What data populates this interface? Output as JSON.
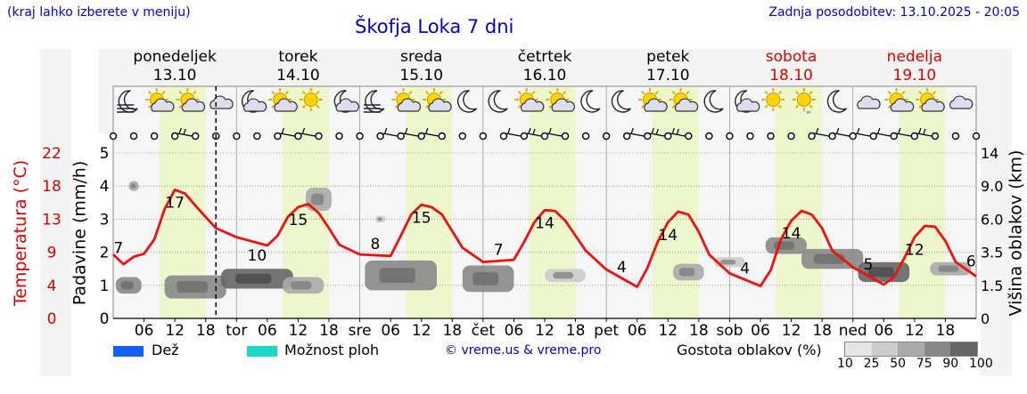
{
  "header": {
    "hint": "(kraj lahko izberete v meniju)",
    "title": "Škofja Loka 7 dni",
    "updated": "Zadnja posodobitev: 13.10.2025 - 20:05"
  },
  "axes": {
    "temp_label": "Temperatura (°C)",
    "rain_label": "Padavine (mm/h)",
    "cloud_label": "Višina oblakov (km)"
  },
  "colors": {
    "temp_line": "#ee1111",
    "rain": "#1060ff",
    "showers": "#18d8c8",
    "day_band": "#eef6cc",
    "title": "#0000dd",
    "weekend": "#e00000"
  },
  "chart_data": {
    "type": "line",
    "title": "Škofja Loka 7 dni",
    "days": [
      {
        "name": "ponedeljek",
        "date": "13.10",
        "weekend": false
      },
      {
        "name": "torek",
        "date": "14.10",
        "weekend": false
      },
      {
        "name": "sreda",
        "date": "15.10",
        "weekend": false
      },
      {
        "name": "četrtek",
        "date": "16.10",
        "weekend": false
      },
      {
        "name": "petek",
        "date": "17.10",
        "weekend": false
      },
      {
        "name": "sobota",
        "date": "18.10",
        "weekend": true
      },
      {
        "name": "nedelja",
        "date": "19.10",
        "weekend": true
      }
    ],
    "x_ticks": [
      "06",
      "12",
      "18",
      "tor",
      "06",
      "12",
      "18",
      "sre",
      "06",
      "12",
      "18",
      "čet",
      "06",
      "12",
      "18",
      "pet",
      "06",
      "12",
      "18",
      "sob",
      "06",
      "12",
      "18",
      "ned",
      "06",
      "12",
      "18"
    ],
    "x_tick_hours": [
      6,
      12,
      18,
      24,
      30,
      36,
      42,
      48,
      54,
      60,
      66,
      72,
      78,
      84,
      90,
      96,
      102,
      108,
      114,
      120,
      126,
      132,
      138,
      144,
      150,
      156,
      162
    ],
    "x_range_hours": [
      0,
      168
    ],
    "now_hour": 20,
    "temp": {
      "hours": [
        0,
        2,
        4,
        6,
        8,
        10,
        12,
        14,
        16,
        18,
        20,
        24,
        30,
        32,
        34,
        36,
        38,
        40,
        42,
        44,
        48,
        54,
        56,
        58,
        60,
        62,
        64,
        66,
        68,
        72,
        78,
        80,
        82,
        84,
        86,
        88,
        90,
        92,
        96,
        102,
        104,
        106,
        108,
        110,
        112,
        114,
        116,
        120,
        126,
        128,
        130,
        132,
        134,
        136,
        138,
        140,
        144,
        150,
        152,
        154,
        156,
        158,
        160,
        162,
        164,
        168
      ],
      "values": [
        8.5,
        7.2,
        8.2,
        8.6,
        10.5,
        14.5,
        17.1,
        16.6,
        15.0,
        13.5,
        12.0,
        10.8,
        9.7,
        11.0,
        13.5,
        14.8,
        15.2,
        14.0,
        12.0,
        9.8,
        8.5,
        8.3,
        11.0,
        13.8,
        15.1,
        14.8,
        13.8,
        11.6,
        9.4,
        7.5,
        7.8,
        10.2,
        12.8,
        14.4,
        14.3,
        13.0,
        11.0,
        9.0,
        6.5,
        4.2,
        6.7,
        10.2,
        12.8,
        14.2,
        13.8,
        11.5,
        8.5,
        6.0,
        4.3,
        6.4,
        10.5,
        13.0,
        14.3,
        13.8,
        12.0,
        9.0,
        6.8,
        4.5,
        5.5,
        8.0,
        10.8,
        12.3,
        12.2,
        10.3,
        7.5,
        5.6
      ]
    },
    "temp_labels": [
      {
        "hour": 1,
        "value": "7"
      },
      {
        "hour": 12,
        "value": "17"
      },
      {
        "hour": 28,
        "value": "10"
      },
      {
        "hour": 36,
        "value": "15"
      },
      {
        "hour": 51,
        "value": "8"
      },
      {
        "hour": 60,
        "value": "15"
      },
      {
        "hour": 75,
        "value": "7"
      },
      {
        "hour": 84,
        "value": "14"
      },
      {
        "hour": 99,
        "value": "4"
      },
      {
        "hour": 108,
        "value": "14"
      },
      {
        "hour": 123,
        "value": "4"
      },
      {
        "hour": 132,
        "value": "14"
      },
      {
        "hour": 147,
        "value": "5"
      },
      {
        "hour": 156,
        "value": "12"
      },
      {
        "hour": 167,
        "value": "6"
      }
    ],
    "temp_ticks": [
      "0",
      "4",
      "9",
      "13",
      "18",
      "22"
    ],
    "temp_tick_values": [
      0,
      4.4,
      8.8,
      13.2,
      17.6,
      22
    ],
    "temp_range": [
      0,
      22
    ],
    "rain_ticks": [
      "0",
      "1",
      "2",
      "3",
      "4",
      "5"
    ],
    "rain_range": [
      0,
      5
    ],
    "cloud_ticks": [
      "0",
      "1.5",
      "3.5",
      "6.0",
      "9.0",
      "14"
    ],
    "cloud_tick_positions": [
      0,
      1,
      2,
      3,
      4,
      5
    ],
    "cloud_blobs": [
      {
        "hour": 4,
        "level": 4.0,
        "w": 2,
        "h": 0.3,
        "density": 50
      },
      {
        "hour": 3,
        "level": 1.0,
        "w": 5,
        "h": 0.5,
        "density": 75
      },
      {
        "hour": 16,
        "level": 0.95,
        "w": 12,
        "h": 0.7,
        "density": 75
      },
      {
        "hour": 28,
        "level": 1.2,
        "w": 14,
        "h": 0.6,
        "density": 90
      },
      {
        "hour": 40,
        "level": 3.6,
        "w": 5,
        "h": 0.7,
        "density": 50
      },
      {
        "hour": 37,
        "level": 1.0,
        "w": 8,
        "h": 0.5,
        "density": 50
      },
      {
        "hour": 52,
        "level": 3.0,
        "w": 2,
        "h": 0.2,
        "density": 25
      },
      {
        "hour": 56,
        "level": 1.3,
        "w": 14,
        "h": 0.9,
        "density": 75
      },
      {
        "hour": 73,
        "level": 1.2,
        "w": 10,
        "h": 0.8,
        "density": 75
      },
      {
        "hour": 88,
        "level": 1.3,
        "w": 8,
        "h": 0.4,
        "density": 25
      },
      {
        "hour": 112,
        "level": 1.4,
        "w": 6,
        "h": 0.5,
        "density": 50
      },
      {
        "hour": 120,
        "level": 1.7,
        "w": 6,
        "h": 0.3,
        "density": 25
      },
      {
        "hour": 131,
        "level": 2.2,
        "w": 8,
        "h": 0.5,
        "density": 75
      },
      {
        "hour": 140,
        "level": 1.8,
        "w": 12,
        "h": 0.6,
        "density": 75
      },
      {
        "hour": 150,
        "level": 1.4,
        "w": 10,
        "h": 0.6,
        "density": 90
      },
      {
        "hour": 163,
        "level": 1.5,
        "w": 8,
        "h": 0.4,
        "density": 50
      }
    ],
    "weather_icons": [
      "moon-fog",
      "sun-cloud",
      "sun-cloud",
      "cloud",
      "moon-cloud",
      "sun-cloud",
      "sun",
      "moon-cloud",
      "moon-fog",
      "sun-cloud",
      "sun-cloud",
      "moon",
      "moon",
      "sun-cloud",
      "sun-cloud",
      "moon",
      "moon",
      "sun-cloud",
      "sun-cloud",
      "moon",
      "moon-cloud",
      "sun",
      "sun-drizzle",
      "moon-drizzle",
      "cloud",
      "sun-cloud",
      "sun-cloud",
      "cloud"
    ],
    "wind_hours": [
      0,
      4,
      8,
      12,
      16,
      20,
      24,
      28,
      32,
      36,
      40,
      44,
      48,
      52,
      56,
      60,
      64,
      68,
      72,
      76,
      80,
      84,
      88,
      92,
      96,
      100,
      104,
      108,
      112,
      116,
      120,
      124,
      128,
      132,
      136,
      140,
      144,
      148,
      152,
      156,
      160,
      164,
      168
    ],
    "wind_strength": [
      0,
      0,
      0,
      0,
      2,
      0,
      0,
      0,
      0,
      1,
      1,
      0,
      0,
      0,
      1,
      1,
      1,
      0,
      0,
      0,
      1,
      2,
      1,
      0,
      0,
      0,
      1,
      2,
      2,
      0,
      0,
      0,
      0,
      0,
      0,
      1,
      1,
      1,
      1,
      1,
      2,
      0,
      0
    ]
  },
  "legend": {
    "rain": "Dež",
    "showers": "Možnost ploh",
    "credit": "© vreme.us & vreme.pro",
    "cloud_density": "Gostota oblakov (%)",
    "density_steps": [
      "10",
      "25",
      "50",
      "75",
      "90",
      "100"
    ]
  }
}
